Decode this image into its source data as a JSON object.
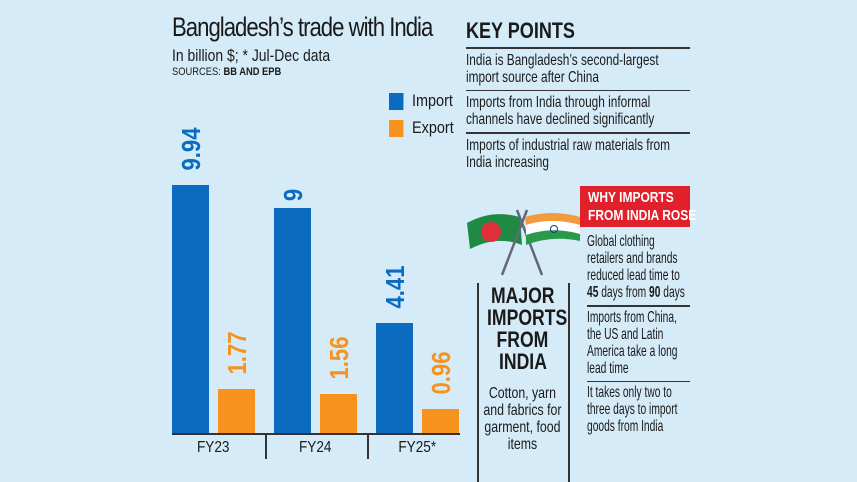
{
  "chart_data": {
    "type": "bar",
    "title": "Bangladesh’s trade with India",
    "subtitle": "In billion $; * Jul-Dec data",
    "source_prefix": "SOURCES: ",
    "source": "BB AND EPB",
    "categories": [
      "FY23",
      "FY24",
      "FY25*"
    ],
    "series": [
      {
        "name": "Import",
        "values": [
          9.94,
          9,
          4.41
        ],
        "labels": [
          "9.94",
          "9",
          "4.41"
        ],
        "color": "#0a6bc0"
      },
      {
        "name": "Export",
        "values": [
          1.77,
          1.56,
          0.96
        ],
        "labels": [
          "1.77",
          "1.56",
          "0.96"
        ],
        "color": "#f7921e"
      }
    ],
    "ylim": [
      0,
      10
    ],
    "legend": "top-right",
    "grid": false
  },
  "key_points": {
    "heading": "KEY POINTS",
    "items": [
      "India is Bangladesh’s second-largest import source after China",
      "Imports from India through informal channels have declined significantly",
      "Imports of industrial raw materials from India increasing"
    ]
  },
  "why": {
    "heading_line1": "WHY IMPORTS",
    "heading_line2": "FROM INDIA ROSE",
    "item1_pre": "Global clothing retailers and brands reduced lead time to ",
    "item1_b1": "45",
    "item1_mid": " days from ",
    "item1_b2": "90",
    "item1_post": " days",
    "item2": "Imports from China, the US and Latin America take a long lead time",
    "item3": "It takes only two to three days to import goods from India",
    "color": "#e0202a"
  },
  "major": {
    "l1": "MAJOR",
    "l2": "IMPORTS",
    "l3": "FROM",
    "l4": "INDIA",
    "text": "Cotton, yarn and fabrics for garment, food items"
  },
  "icons": [
    "bangladesh-flag",
    "india-flag"
  ]
}
